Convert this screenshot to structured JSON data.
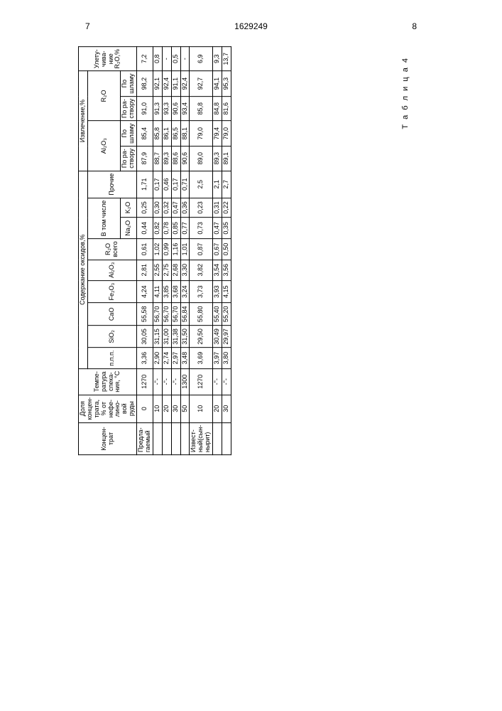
{
  "page_left": "7",
  "page_right": "8",
  "doc_number": "1629249",
  "table_label": "Т а б л и ц а 4",
  "headers": {
    "concentrat": "Концен-\nтрат",
    "share": "Доля\nконцен-\nтрата,\n% от\nнефе-\nлино-\nвой\nруды",
    "temp": "Темпе-\nратура\nспека-\nния, °С",
    "content": "Содержание оксидов,%",
    "extract": "Извлечение,%",
    "volat": "Улету-\nчива-\nние\nR₂O,%",
    "npp": "п.п.п.",
    "sio2": "SiO₂",
    "cao": "CaO",
    "fe2o3": "Fe₂O₃",
    "al2o3": "Al₂O₃",
    "r2o": "R₂O\nвсего",
    "incl": "В том числе",
    "na2o": "Na₂O",
    "k2o": "K₂O",
    "other": "Прочие",
    "ext_al2o3": "Al₂O₃",
    "ext_r2o": "R₂O",
    "po_rastvoru": "По ра-\nстворy",
    "po_shlamu": "По\nшламу"
  },
  "rows": [
    {
      "conc": "Предла-\nгаемый",
      "share": "0",
      "temp": "1270",
      "npp": "3,36",
      "sio2": "30,05",
      "cao": "55,58",
      "fe2o3": "4,24",
      "al2o3": "2,81",
      "r2o": "0,61",
      "na2o": "0,44",
      "k2o": "0,25",
      "other": "1,71",
      "ext_al_r": "87,9",
      "ext_al_s": "85,4",
      "ext_r_r": "91,0",
      "ext_r_s": "98,2",
      "vol": "7,2"
    },
    {
      "conc": "",
      "share": "10",
      "temp": "-\"-",
      "npp": "2,90",
      "sio2": "31,15",
      "cao": "56,70",
      "fe2o3": "4,11",
      "al2o3": "2,55",
      "r2o": "1,02",
      "na2o": "0,82",
      "k2o": "0,30",
      "other": "0,17",
      "ext_al_r": "88,7",
      "ext_al_s": "85,8",
      "ext_r_r": "91,3",
      "ext_r_s": "92,1",
      "vol": "0,8"
    },
    {
      "conc": "",
      "share": "20",
      "temp": "-\"-",
      "npp": "2,74",
      "sio2": "31,00",
      "cao": "56,70",
      "fe2o3": "3,85",
      "al2o3": "2,75",
      "r2o": "0,99",
      "na2o": "0,78",
      "k2o": "0,32",
      "other": "0,46",
      "ext_al_r": "89,3",
      "ext_al_s": "86,1",
      "ext_r_r": "93,3",
      "ext_r_s": "92,4",
      "vol": "-"
    },
    {
      "conc": "",
      "share": "30",
      "temp": "-\"-",
      "npp": "2,97",
      "sio2": "31,38",
      "cao": "56,70",
      "fe2o3": "3,68",
      "al2o3": "2,68",
      "r2o": "1,16",
      "na2o": "0,85",
      "k2o": "0,47",
      "other": "0,17",
      "ext_al_r": "88,6",
      "ext_al_s": "86,5",
      "ext_r_r": "90,6",
      "ext_r_s": "91,1",
      "vol": "0,5"
    },
    {
      "conc": "",
      "share": "50",
      "temp": "1300",
      "npp": "3,48",
      "sio2": "31,50",
      "cao": "56,84",
      "fe2o3": "3,24",
      "al2o3": "3,30",
      "r2o": "1,01",
      "na2o": "0,77",
      "k2o": "0,36",
      "other": "0,71",
      "ext_al_r": "90,6",
      "ext_al_s": "88,1",
      "ext_r_r": "93,4",
      "ext_r_s": "92,4",
      "vol": "-"
    },
    {
      "conc": "Извест-\nный(сын-\nнырит)",
      "share": "10",
      "temp": "1270",
      "npp": "3,69",
      "sio2": "29,50",
      "cao": "55,80",
      "fe2o3": "3,73",
      "al2o3": "3,82",
      "r2o": "0,87",
      "na2o": "0,73",
      "k2o": "0,23",
      "other": "2,5",
      "ext_al_r": "89,0",
      "ext_al_s": "79,0",
      "ext_r_r": "85,8",
      "ext_r_s": "92,7",
      "vol": "6,9"
    },
    {
      "conc": "",
      "share": "20",
      "temp": "-\"-",
      "npp": "3,97",
      "sio2": "30,49",
      "cao": "55,40",
      "fe2o3": "3,93",
      "al2o3": "3,54",
      "r2o": "0,67",
      "na2o": "0,47",
      "k2o": "0,31",
      "other": "2,1",
      "ext_al_r": "89,3",
      "ext_al_s": "79,4",
      "ext_r_r": "84,8",
      "ext_r_s": "94,1",
      "vol": "9,3"
    },
    {
      "conc": "",
      "share": "30",
      "temp": "-\"-",
      "npp": "3,80",
      "sio2": "29,97",
      "cao": "55,20",
      "fe2o3": "4,15",
      "al2o3": "3,56",
      "r2o": "0,50",
      "na2o": "0,35",
      "k2o": "0,22",
      "other": "2,7",
      "ext_al_r": "89,1",
      "ext_al_s": "79,0",
      "ext_r_r": "81,6",
      "ext_r_s": "95,3",
      "vol": "13,7"
    }
  ]
}
